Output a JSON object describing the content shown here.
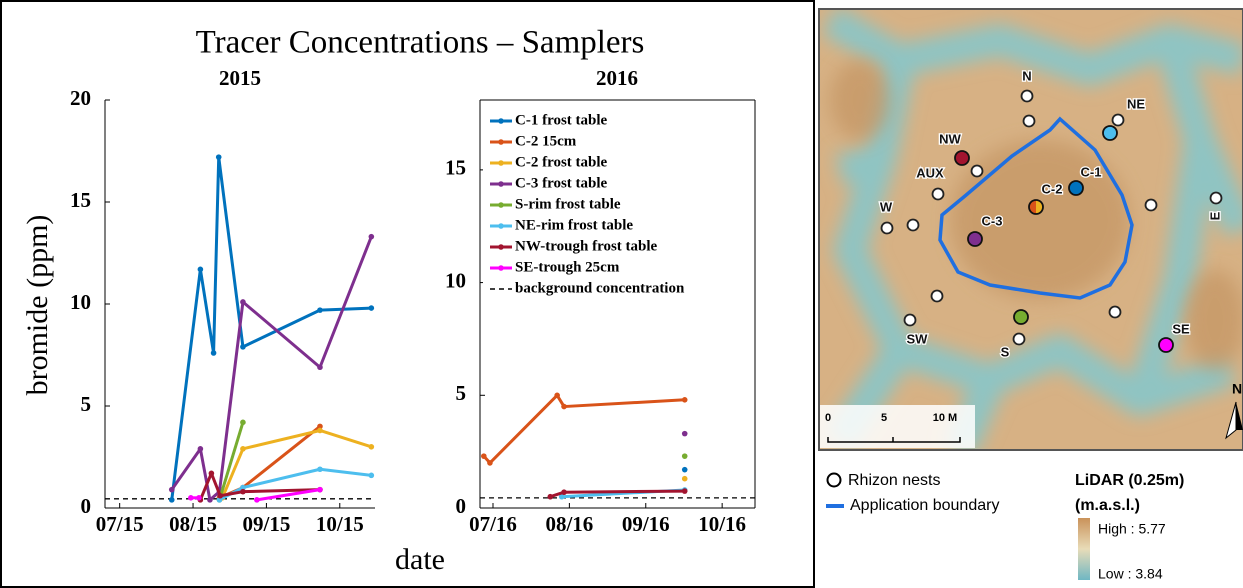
{
  "figure": {
    "title": "Tracer Concentrations – Samplers",
    "y_label": "bromide (ppm)",
    "x_label": "date"
  },
  "chart_data": [
    {
      "type": "line",
      "title": "2015",
      "legend": false,
      "xlim": [
        6.8,
        10.48
      ],
      "xticks": [
        {
          "value": 7,
          "label": "07/15"
        },
        {
          "value": 8,
          "label": "08/15"
        },
        {
          "value": 9,
          "label": "09/15"
        },
        {
          "value": 10,
          "label": "10/15"
        }
      ],
      "ylim": [
        0,
        20
      ],
      "yticks": [
        0,
        5,
        10,
        15,
        20
      ],
      "reference_line": {
        "name": "background concentration",
        "value": 0.45,
        "color": "#000000"
      },
      "series": [
        {
          "name": "C-1 frost table",
          "color": "#0072bd",
          "x": [
            7.71,
            8.1,
            8.28,
            8.35,
            8.68,
            9.73,
            10.43
          ],
          "values": [
            0.4,
            11.7,
            7.6,
            17.2,
            7.9,
            9.7,
            9.8
          ]
        },
        {
          "name": "C-2 15cm",
          "color": "#d95319",
          "x": [
            8.36,
            8.68,
            9.73
          ],
          "values": [
            0.5,
            1.0,
            4.0
          ]
        },
        {
          "name": "C-2 frost table",
          "color": "#edb120",
          "x": [
            8.4,
            8.68,
            9.73,
            10.43
          ],
          "values": [
            0.5,
            2.9,
            3.8,
            3.0
          ]
        },
        {
          "name": "C-3 frost table",
          "color": "#7e2f8e",
          "x": [
            7.71,
            8.1,
            8.23,
            8.36,
            8.68,
            9.73,
            10.43
          ],
          "values": [
            0.9,
            2.9,
            0.4,
            0.8,
            10.1,
            6.9,
            13.3
          ]
        },
        {
          "name": "S-rim frost table",
          "color": "#77ac30",
          "x": [
            8.36,
            8.68
          ],
          "values": [
            0.4,
            4.2
          ]
        },
        {
          "name": "NE-rim frost table",
          "color": "#4dbeee",
          "x": [
            8.36,
            8.68,
            9.73,
            10.43
          ],
          "values": [
            0.4,
            1.0,
            1.9,
            1.6
          ]
        },
        {
          "name": "NW-trough frost table",
          "color": "#a2142f",
          "x": [
            8.1,
            8.25,
            8.37,
            8.68,
            9.73
          ],
          "values": [
            0.4,
            1.7,
            0.6,
            0.8,
            0.9
          ]
        },
        {
          "name": "SE-trough 25cm",
          "color": "#ff00ff",
          "x": [
            7.97,
            8.08,
            8.5,
            8.87,
            9.73
          ],
          "values": [
            0.5,
            0.5,
            null,
            0.4,
            0.9
          ]
        }
      ]
    },
    {
      "type": "line",
      "title": "2016",
      "legend": true,
      "box": true,
      "xlim": [
        6.83,
        10.43
      ],
      "xticks": [
        {
          "value": 7,
          "label": "07/16"
        },
        {
          "value": 8,
          "label": "08/16"
        },
        {
          "value": 9,
          "label": "09/16"
        },
        {
          "value": 10,
          "label": "10/16"
        }
      ],
      "ylim": [
        0,
        18.1
      ],
      "yticks": [
        0,
        5,
        10,
        15
      ],
      "reference_line": {
        "name": "background concentration",
        "value": 0.45,
        "color": "#000000"
      },
      "series": [
        {
          "name": "C-1 frost table",
          "color": "#0072bd",
          "x": [
            9.51
          ],
          "values": [
            1.7
          ]
        },
        {
          "name": "C-2 15cm",
          "color": "#d95319",
          "x": [
            6.88,
            6.96,
            7.84,
            7.93,
            9.51
          ],
          "values": [
            2.3,
            2.0,
            5.0,
            4.5,
            4.8
          ]
        },
        {
          "name": "C-2 frost table",
          "color": "#edb120",
          "x": [
            9.51
          ],
          "values": [
            1.3
          ]
        },
        {
          "name": "C-3 frost table",
          "color": "#7e2f8e",
          "x": [
            9.51
          ],
          "values": [
            3.3
          ]
        },
        {
          "name": "S-rim frost table",
          "color": "#77ac30",
          "x": [
            9.51
          ],
          "values": [
            2.3
          ]
        },
        {
          "name": "NE-rim frost table",
          "color": "#4dbeee",
          "x": [
            7.9,
            9.51
          ],
          "values": [
            0.5,
            0.8
          ]
        },
        {
          "name": "NW-trough frost table",
          "color": "#a2142f",
          "x": [
            7.75,
            7.93,
            9.51
          ],
          "values": [
            0.5,
            0.7,
            0.75
          ]
        },
        {
          "name": "SE-trough 25cm",
          "color": "#ff00ff",
          "x": [],
          "values": []
        }
      ]
    }
  ],
  "map": {
    "sites": [
      "N",
      "NE",
      "NW",
      "AUX",
      "C-1",
      "C-2",
      "W",
      "C-3",
      "E",
      "SW",
      "S",
      "SE"
    ],
    "scale_labels": [
      "0",
      "5",
      "10 M"
    ],
    "north": "N",
    "legend": {
      "nests": "Rhizon nests",
      "boundary": "Application boundary",
      "lidar_title": "LiDAR (0.25m)",
      "units": "(m.a.s.l.)",
      "high": "High : 5.77",
      "low": "Low : 3.84"
    }
  }
}
